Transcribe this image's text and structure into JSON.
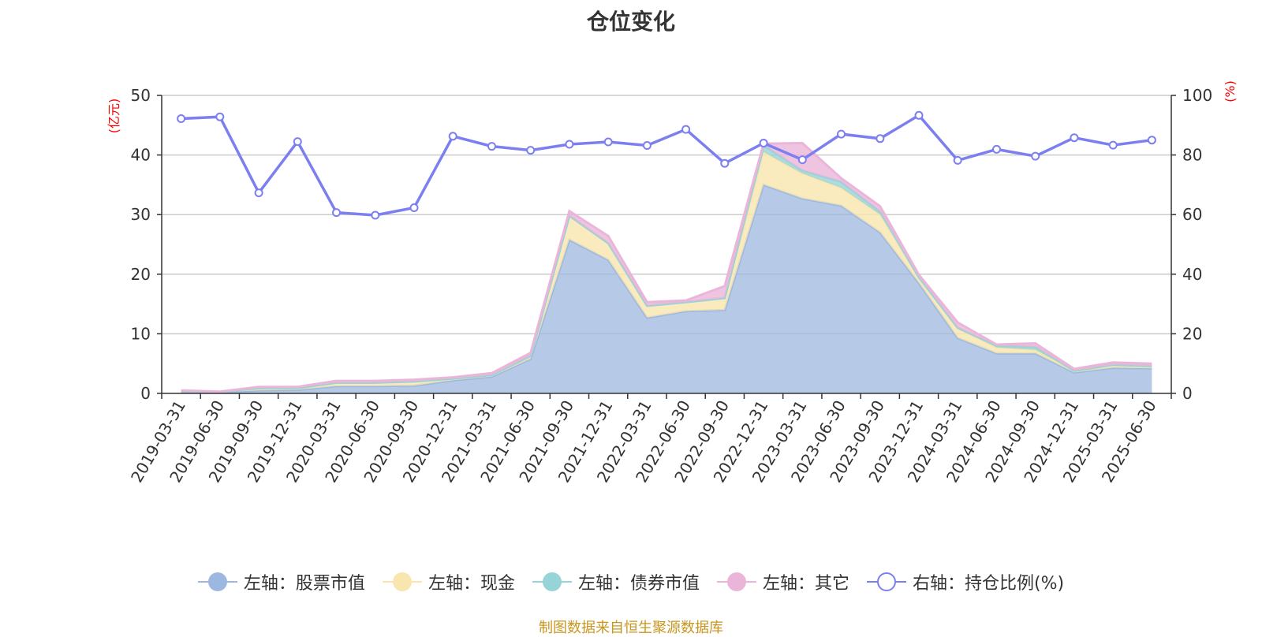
{
  "title": "仓位变化",
  "source": "制图数据来自恒生聚源数据库",
  "chart_data": {
    "type": "area",
    "title": "仓位变化",
    "categories": [
      "2019-03-31",
      "2019-06-30",
      "2019-09-30",
      "2019-12-31",
      "2020-03-31",
      "2020-06-30",
      "2020-09-30",
      "2020-12-31",
      "2021-03-31",
      "2021-06-30",
      "2021-09-30",
      "2021-12-31",
      "2022-03-31",
      "2022-06-30",
      "2022-09-30",
      "2022-12-31",
      "2023-03-31",
      "2023-06-30",
      "2023-09-30",
      "2023-12-31",
      "2024-03-31",
      "2024-06-30",
      "2024-09-30",
      "2024-12-31",
      "2025-03-31",
      "2025-06-30"
    ],
    "left_axis": {
      "label": "(亿元)",
      "ylim": [
        0,
        50
      ],
      "ticks": [
        0,
        10,
        20,
        30,
        40,
        50
      ]
    },
    "right_axis": {
      "label": "(%)",
      "ylim": [
        0,
        100
      ],
      "ticks": [
        0,
        20,
        40,
        60,
        80,
        100
      ]
    },
    "grid": true,
    "legend_position": "bottom",
    "stacked": true,
    "series": [
      {
        "name": "左轴：股票市值",
        "axis": "left",
        "type": "area",
        "color": "#9db8e0",
        "values": [
          0.3,
          0.2,
          0.5,
          0.6,
          1.2,
          1.2,
          1.3,
          2.2,
          2.8,
          5.8,
          25.8,
          22.4,
          12.7,
          13.8,
          14.0,
          35.0,
          32.7,
          31.5,
          27.0,
          18.5,
          9.3,
          6.7,
          6.7,
          3.5,
          4.3,
          4.2
        ]
      },
      {
        "name": "左轴：现金",
        "axis": "left",
        "type": "area",
        "color": "#f9e6ae",
        "values": [
          0.1,
          0.05,
          0.4,
          0.3,
          0.6,
          0.6,
          0.7,
          0.3,
          0.3,
          0.5,
          4.0,
          2.8,
          2.0,
          1.5,
          2.0,
          5.5,
          4.2,
          3.0,
          3.0,
          1.0,
          1.7,
          1.0,
          0.6,
          0.3,
          0.5,
          0.4
        ]
      },
      {
        "name": "左轴：债券市值",
        "axis": "left",
        "type": "area",
        "color": "#96d4d8",
        "values": [
          0,
          0,
          0,
          0,
          0,
          0,
          0,
          0,
          0,
          0,
          0,
          0,
          0,
          0,
          0,
          1.1,
          0.5,
          1.0,
          0.5,
          0,
          0,
          0.3,
          0.5,
          0,
          0,
          0
        ]
      },
      {
        "name": "左轴：其它",
        "axis": "left",
        "type": "area",
        "color": "#ebb5d9",
        "values": [
          0.1,
          0.05,
          0.2,
          0.2,
          0.3,
          0.3,
          0.3,
          0.2,
          0.3,
          0.5,
          0.8,
          1.2,
          0.6,
          0.3,
          2.0,
          0.3,
          4.6,
          0.6,
          0.9,
          0.4,
          0.9,
          0.2,
          0.6,
          0.3,
          0.4,
          0.4
        ]
      },
      {
        "name": "右轴：持仓比例(%)",
        "axis": "right",
        "type": "line",
        "color": "#7b7ff0",
        "values": [
          92.2,
          92.8,
          67.3,
          84.5,
          60.7,
          59.8,
          62.3,
          86.3,
          82.9,
          81.6,
          83.6,
          84.4,
          83.2,
          88.6,
          77.2,
          84.0,
          78.4,
          87.0,
          85.5,
          93.3,
          78.2,
          81.9,
          79.6,
          85.8,
          83.3,
          85.0
        ]
      }
    ]
  }
}
